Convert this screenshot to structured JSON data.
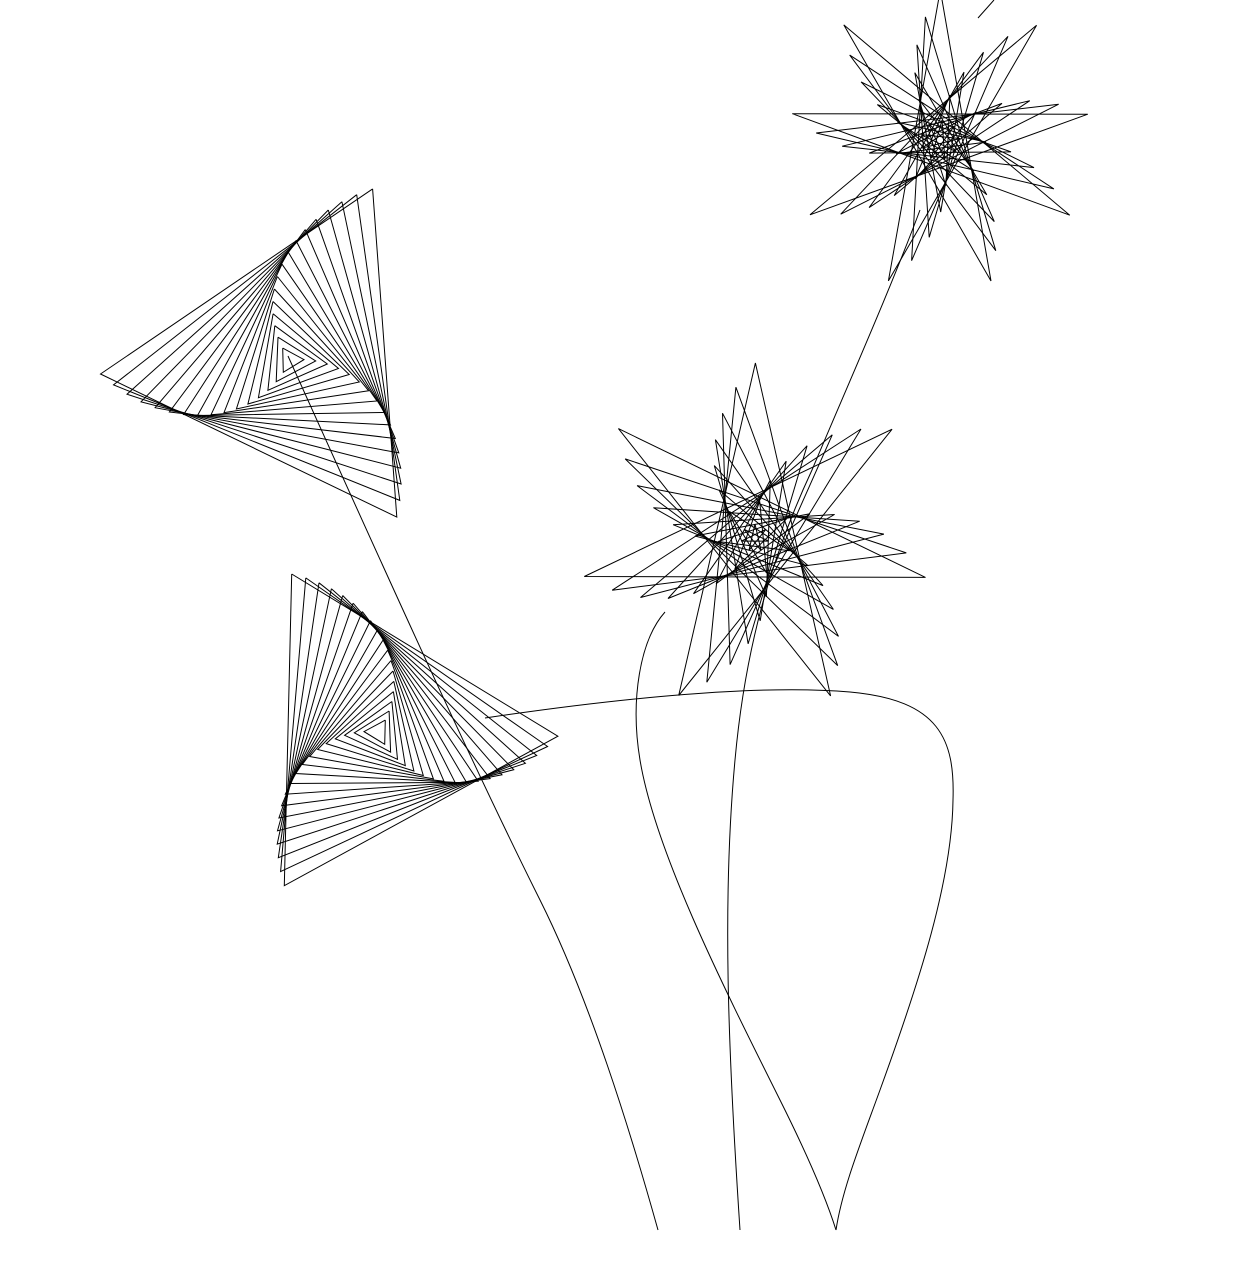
{
  "scene": {
    "background_color": "#ffffff",
    "stroke_color": "#000000",
    "flowers": [
      {
        "kind": "triangle-spiral"
      },
      {
        "kind": "triangle-spiral"
      },
      {
        "kind": "nonagram-spiral"
      },
      {
        "kind": "heptagram-spiral"
      }
    ],
    "stems": 4
  }
}
